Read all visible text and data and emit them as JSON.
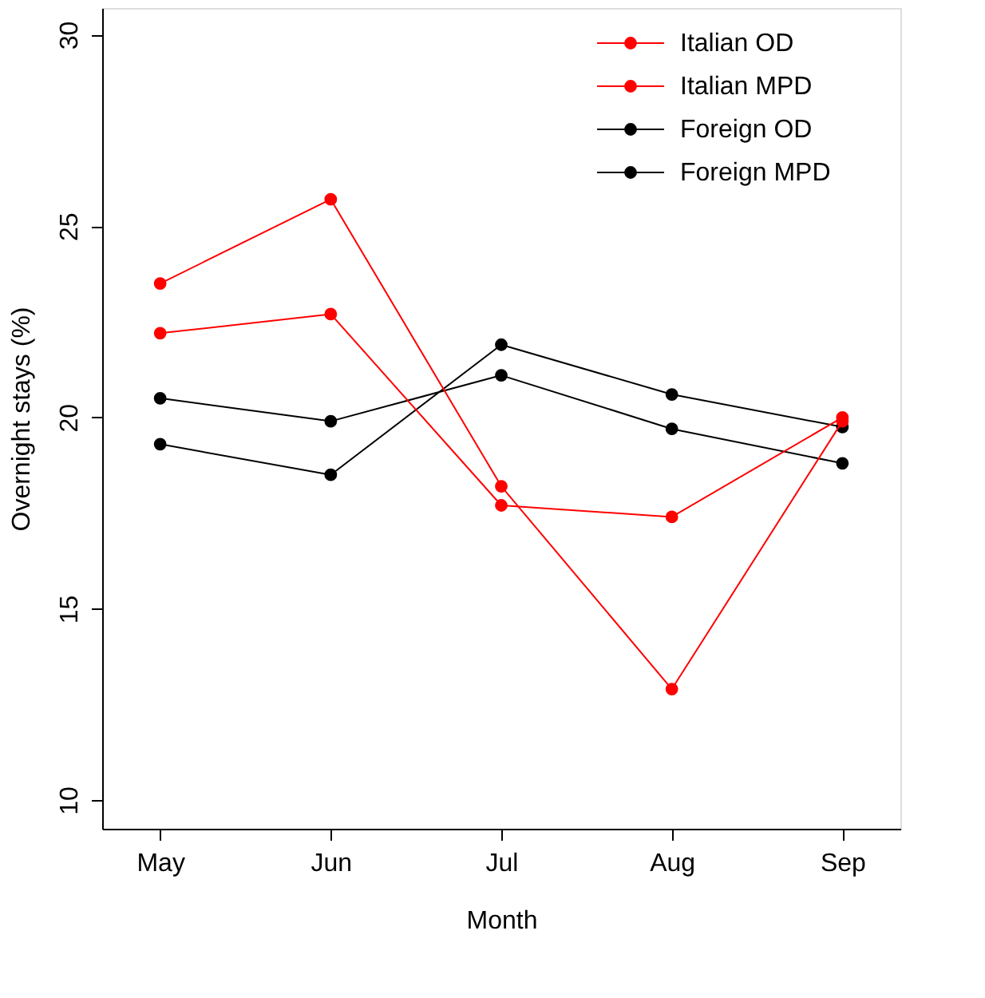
{
  "chart_data": {
    "type": "line",
    "xlabel": "Month",
    "ylabel": "Overnight stays (%)",
    "categories": [
      "May",
      "Jun",
      "Jul",
      "Aug",
      "Sep"
    ],
    "ylim": [
      9.25,
      30.7
    ],
    "yticks": [
      10,
      15,
      20,
      25,
      30
    ],
    "grid": false,
    "legend": "top right",
    "marker": "circle",
    "line_style": "solid",
    "series": [
      {
        "name": "Italian OD",
        "color": "#ff0000",
        "values": [
          22.2,
          22.7,
          17.7,
          17.4,
          20.0
        ]
      },
      {
        "name": "Italian MPD",
        "color": "#ff0000",
        "values": [
          23.5,
          25.7,
          18.2,
          12.9,
          19.9
        ]
      },
      {
        "name": "Foreign OD",
        "color": "#000000",
        "values": [
          19.3,
          18.5,
          21.9,
          20.6,
          19.75
        ]
      },
      {
        "name": "Foreign MPD",
        "color": "#000000",
        "values": [
          20.5,
          19.9,
          21.1,
          19.7,
          18.8
        ]
      }
    ]
  }
}
